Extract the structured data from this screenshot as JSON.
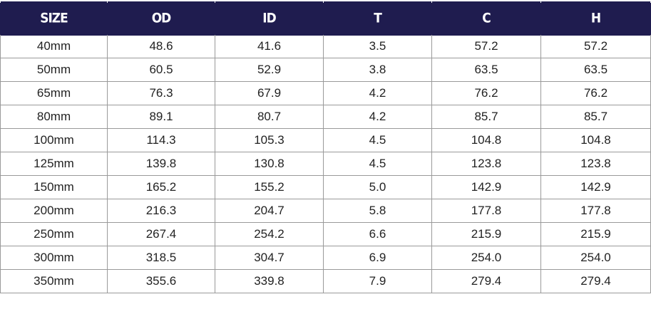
{
  "table": {
    "headers": [
      "SIZE",
      "OD",
      "ID",
      "T",
      "C",
      "H"
    ],
    "rows": [
      [
        "40mm",
        "48.6",
        "41.6",
        "3.5",
        "57.2",
        "57.2"
      ],
      [
        "50mm",
        "60.5",
        "52.9",
        "3.8",
        "63.5",
        "63.5"
      ],
      [
        "65mm",
        "76.3",
        "67.9",
        "4.2",
        "76.2",
        "76.2"
      ],
      [
        "80mm",
        "89.1",
        "80.7",
        "4.2",
        "85.7",
        "85.7"
      ],
      [
        "100mm",
        "114.3",
        "105.3",
        "4.5",
        "104.8",
        "104.8"
      ],
      [
        "125mm",
        "139.8",
        "130.8",
        "4.5",
        "123.8",
        "123.8"
      ],
      [
        "150mm",
        "165.2",
        "155.2",
        "5.0",
        "142.9",
        "142.9"
      ],
      [
        "200mm",
        "216.3",
        "204.7",
        "5.8",
        "177.8",
        "177.8"
      ],
      [
        "250mm",
        "267.4",
        "254.2",
        "6.6",
        "215.9",
        "215.9"
      ],
      [
        "300mm",
        "318.5",
        "304.7",
        "6.9",
        "254.0",
        "254.0"
      ],
      [
        "350mm",
        "355.6",
        "339.8",
        "7.9",
        "279.4",
        "279.4"
      ]
    ],
    "colors": {
      "header_background": "#1f1c4f",
      "header_text": "#ffffff",
      "grid_line": "#9a9a9a"
    }
  }
}
